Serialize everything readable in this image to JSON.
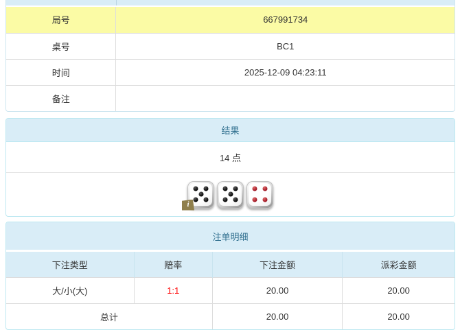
{
  "colors": {
    "panel_border": "#bce8f1",
    "panel_heading_bg": "#d9edf7",
    "panel_heading_text": "#31708f",
    "highlight_row_bg": "#fbfba5",
    "table_inner_border": "#dddddd",
    "body_text": "#333333",
    "odds_red": "#ff0000",
    "die_pip_black": "#111111",
    "die_pip_red": "#9b0f1e",
    "info_badge_bg": "#8f7f4c"
  },
  "game_info": {
    "rows": [
      {
        "label": "局号",
        "value": "667991734"
      },
      {
        "label": "桌号",
        "value": "BC1"
      },
      {
        "label": "时间",
        "value": "2025-12-09 04:23:11"
      },
      {
        "label": "备注",
        "value": ""
      }
    ]
  },
  "result": {
    "title": "结果",
    "points": "14 点",
    "dice": [
      {
        "value": 5,
        "pip_color": "black",
        "info_badge": "i"
      },
      {
        "value": 5,
        "pip_color": "black"
      },
      {
        "value": 4,
        "pip_color": "red"
      }
    ]
  },
  "bet_details": {
    "title": "注单明细",
    "columns": [
      "下注类型",
      "赔率",
      "下注金额",
      "派彩金额"
    ],
    "rows": [
      {
        "bet_type": "大/小(大)",
        "odds": "1:1",
        "bet_amount": "20.00",
        "payout_amount": "20.00"
      }
    ],
    "total_row": {
      "label": "总计",
      "bet_amount": "20.00",
      "payout_amount": "20.00"
    }
  }
}
